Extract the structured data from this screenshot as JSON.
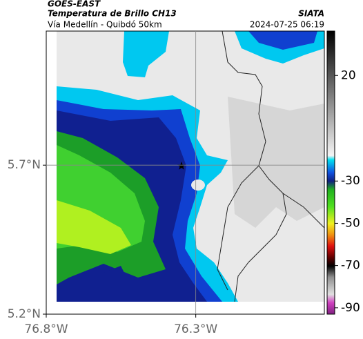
{
  "header": {
    "title": "GOES-EAST",
    "subtitle": "Temperatura de Brillo CH13",
    "region": "Vía Medellín - Quibdó 50km",
    "source": "SIATA",
    "timestamp": "2024-07-25 06:19"
  },
  "map": {
    "xlim": [
      -76.8,
      -75.87
    ],
    "ylim": [
      5.2,
      6.15
    ],
    "xticks": [
      {
        "value": -76.8,
        "label": "76.8°W"
      },
      {
        "value": -76.3,
        "label": "76.3°W"
      }
    ],
    "yticks": [
      {
        "value": 5.2,
        "label": "5.2°N"
      },
      {
        "value": 5.7,
        "label": "5.7°N"
      }
    ],
    "grid": true
  },
  "colorbar": {
    "lim": [
      -93,
      41
    ],
    "ticks": [
      20,
      -30,
      -50,
      -70,
      -90
    ]
  }
}
